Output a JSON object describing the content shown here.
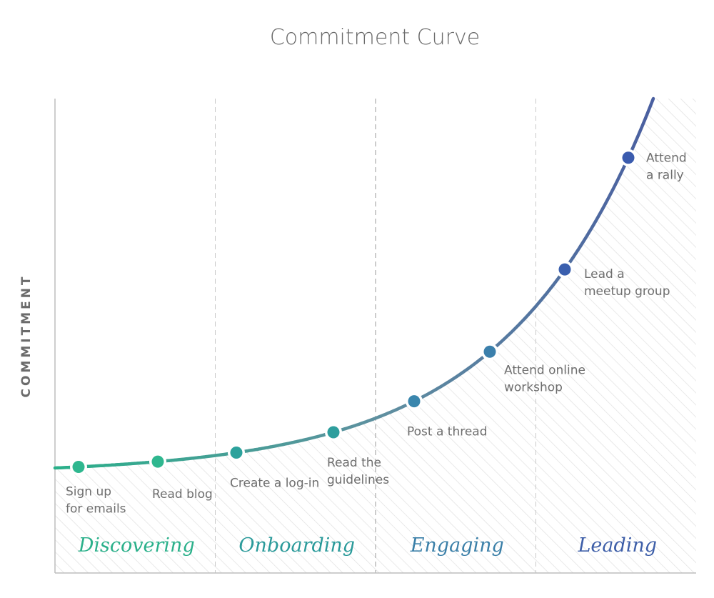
{
  "chart_data": {
    "type": "line",
    "title": "Commitment Curve",
    "ylabel": "COMMITMENT",
    "xlabel": "",
    "phases": [
      {
        "label": "Discovering",
        "color": "#2ab08a"
      },
      {
        "label": "Onboarding",
        "color": "#2a9a9a"
      },
      {
        "label": "Engaging",
        "color": "#3a7fa8"
      },
      {
        "label": "Leading",
        "color": "#3d5ea8"
      }
    ],
    "points": [
      {
        "label": [
          "Sign up",
          "for emails"
        ],
        "phase": "Discovering",
        "color": "#2fb78f"
      },
      {
        "label": [
          "Read blog"
        ],
        "phase": "Discovering",
        "color": "#2fb78f"
      },
      {
        "label": [
          "Create a log-in"
        ],
        "phase": "Onboarding",
        "color": "#2ca29c"
      },
      {
        "label": [
          "Read the",
          "guidelines"
        ],
        "phase": "Onboarding",
        "color": "#2e9e9d"
      },
      {
        "label": [
          "Post a thread"
        ],
        "phase": "Engaging",
        "color": "#3a86ad"
      },
      {
        "label": [
          "Attend online",
          "workshop"
        ],
        "phase": "Engaging",
        "color": "#3b80ac"
      },
      {
        "label": [
          "Lead a",
          "meetup group"
        ],
        "phase": "Leading",
        "color": "#3a5fae"
      },
      {
        "label": [
          "Attend",
          "a rally"
        ],
        "phase": "Leading",
        "color": "#3a5bae"
      }
    ],
    "curve_colors": [
      "#2ab08a",
      "#5f8fa0",
      "#4a5fa0"
    ],
    "grid": false,
    "axes": {
      "x_ticks": false,
      "y_ticks": false
    }
  }
}
